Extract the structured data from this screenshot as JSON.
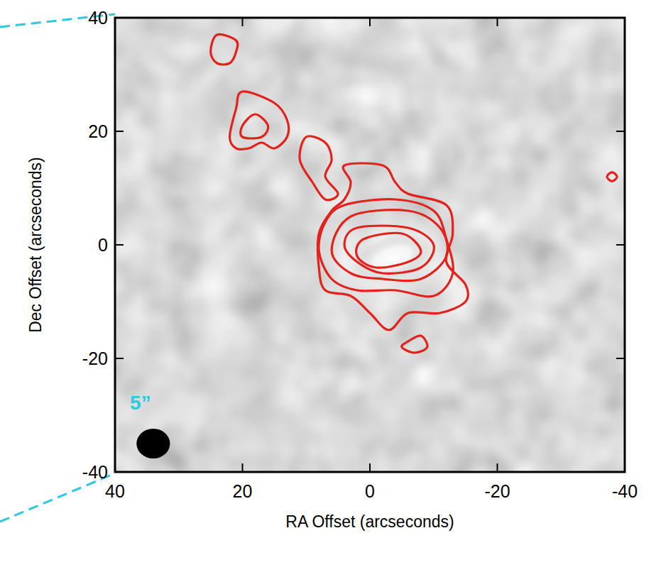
{
  "chart_data": {
    "type": "contour",
    "xlabel": "RA Offset (arcseconds)",
    "ylabel": "Dec Offset (arcseconds)",
    "xlim": [
      40,
      -40
    ],
    "ylim": [
      -40,
      40
    ],
    "xticks": [
      40,
      20,
      0,
      -20,
      -40
    ],
    "yticks": [
      -40,
      -20,
      0,
      20,
      40
    ],
    "color": "#e3221c",
    "source": {
      "x": -3.5,
      "y": -2.3
    },
    "beam": {
      "x": 34,
      "y": -35,
      "size": 5
    },
    "annotations": [
      {
        "text": "5”",
        "x": 36,
        "y": -29,
        "color": "#2ec8e0"
      }
    ],
    "contours": [
      {
        "x": [
          4,
          -2,
          -4,
          -6,
          -12,
          -13,
          -12,
          -15,
          -15,
          -11,
          -6,
          -3,
          0,
          3,
          7,
          8,
          8,
          6,
          4,
          3
        ],
        "y": [
          14,
          14,
          11,
          9,
          7,
          2,
          -3,
          -7,
          -10,
          -12,
          -12,
          -15,
          -12,
          -9,
          -8,
          -4,
          2,
          6,
          8,
          11
        ]
      },
      {
        "x": [
          4,
          -4,
          -10,
          -12,
          -13,
          -10,
          -4,
          2,
          6,
          8,
          7
        ],
        "y": [
          7,
          8,
          6,
          1,
          -5,
          -9,
          -8,
          -8,
          -6,
          -1,
          4
        ]
      },
      {
        "x": [
          3,
          -6,
          -11,
          -12,
          -8,
          -2,
          3,
          6
        ],
        "y": [
          5,
          6,
          3,
          -2,
          -6,
          -6,
          -5,
          -1
        ]
      },
      {
        "x": [
          2,
          -6,
          -10,
          -8,
          -2,
          2,
          4
        ],
        "y": [
          3,
          3,
          0,
          -4,
          -5,
          -3,
          0
        ]
      },
      {
        "x": [
          1,
          -5,
          -8,
          -6,
          -1,
          2
        ],
        "y": [
          1,
          2,
          -1,
          -3,
          -4,
          -2
        ]
      },
      {
        "x": [
          24,
          21,
          21,
          22,
          24,
          25
        ],
        "y": [
          37,
          36,
          34,
          32,
          32,
          34
        ]
      },
      {
        "x": [
          20,
          15,
          13,
          13,
          15,
          17,
          19,
          21,
          22,
          21
        ],
        "y": [
          27,
          25,
          22,
          19,
          17,
          18,
          17,
          17,
          19,
          24
        ]
      },
      {
        "x": [
          18,
          16,
          17,
          20,
          20
        ],
        "y": [
          23,
          21,
          19,
          19,
          21
        ]
      },
      {
        "x": [
          10,
          7,
          6,
          7,
          5,
          7,
          9,
          11
        ],
        "y": [
          19,
          18,
          15,
          12,
          9,
          8,
          11,
          15
        ]
      },
      {
        "x": [
          -6,
          -8,
          -9,
          -7,
          -5
        ],
        "y": [
          -17,
          -16,
          -18,
          -19,
          -18
        ]
      },
      {
        "x": [
          -38,
          -38.8,
          -38,
          -37.2
        ],
        "y": [
          12.8,
          12,
          11.2,
          12
        ]
      }
    ]
  }
}
